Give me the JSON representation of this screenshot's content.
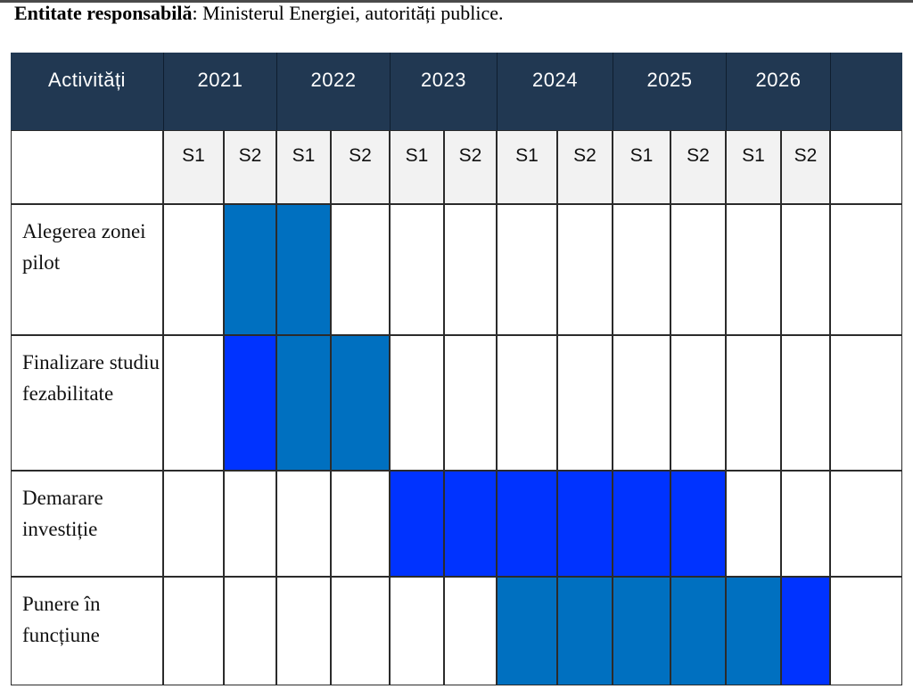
{
  "responsible": {
    "label": "Entitate responsabilă",
    "text": ": Ministerul Energiei, autorități publice."
  },
  "header": {
    "activities_label": "Activități",
    "years": [
      "2021",
      "2022",
      "2023",
      "2024",
      "2025",
      "2026"
    ]
  },
  "semesters": [
    "S1",
    "S2",
    "S1",
    "S2",
    "S1",
    "S2",
    "S1",
    "S2",
    "S1",
    "S2",
    "S1",
    "S2"
  ],
  "colors": {
    "header_bg": "#213852",
    "bar_primary": "#0070c0",
    "bar_secondary": "#0033ff",
    "semester_bg": "#f2f2f2"
  },
  "activities": [
    {
      "name": "Alegerea zonei pilot",
      "fills": [
        "",
        "primary",
        "primary",
        "",
        "",
        "",
        "",
        "",
        "",
        "",
        "",
        ""
      ]
    },
    {
      "name": "Finalizare studiu fezabilitate",
      "fills": [
        "",
        "secondary",
        "primary",
        "primary",
        "",
        "",
        "",
        "",
        "",
        "",
        "",
        ""
      ]
    },
    {
      "name": "Demarare investiție",
      "fills": [
        "",
        "",
        "",
        "",
        "secondary",
        "secondary",
        "secondary",
        "secondary",
        "secondary",
        "secondary",
        "",
        ""
      ]
    },
    {
      "name": "Punere în funcțiune",
      "fills": [
        "",
        "",
        "",
        "",
        "",
        "",
        "primary",
        "primary",
        "primary",
        "primary",
        "primary",
        "secondary"
      ]
    }
  ]
}
